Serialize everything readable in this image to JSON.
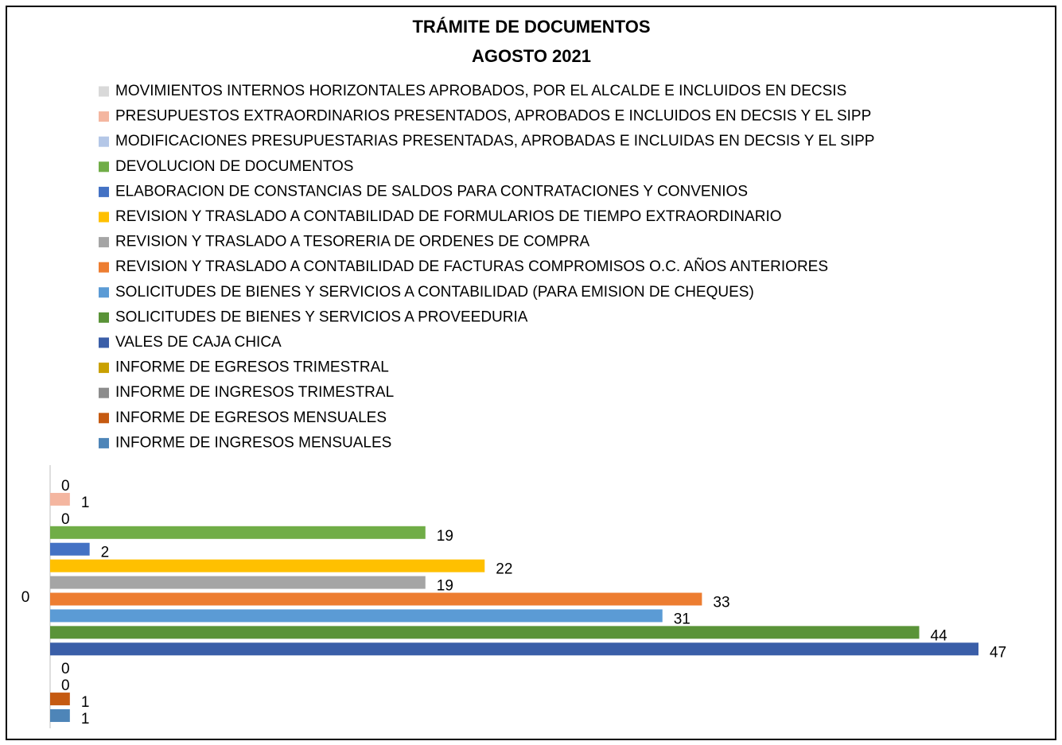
{
  "chart_data": {
    "type": "barh",
    "title": "TRÁMITE DE DOCUMENTOS",
    "subtitle": "AGOSTO 2021",
    "categories": [
      "0"
    ],
    "xlim": [
      0,
      50
    ],
    "series": [
      {
        "name": "MOVIMIENTOS INTERNOS HORIZONTALES APROBADOS,  POR EL ALCALDE E INCLUIDOS EN DECSIS",
        "color": "#d9d9d9",
        "values": [
          0
        ]
      },
      {
        "name": "PRESUPUESTOS EXTRAORDINARIOS PRESENTADOS, APROBADOS E INCLUIDOS EN DECSIS Y EL SIPP",
        "color": "#f4b6a0",
        "values": [
          1
        ]
      },
      {
        "name": "MODIFICACIONES PRESUPUESTARIAS PRESENTADAS, APROBADAS E INCLUIDAS EN DECSIS Y EL SIPP",
        "color": "#b4c7e7",
        "values": [
          0
        ]
      },
      {
        "name": "DEVOLUCION DE DOCUMENTOS",
        "color": "#70ad47",
        "values": [
          19
        ]
      },
      {
        "name": "ELABORACION DE CONSTANCIAS DE SALDOS PARA CONTRATACIONES Y CONVENIOS",
        "color": "#4472c4",
        "values": [
          2
        ]
      },
      {
        "name": "REVISION Y TRASLADO A CONTABILIDAD DE FORMULARIOS DE TIEMPO EXTRAORDINARIO",
        "color": "#ffc000",
        "values": [
          22
        ]
      },
      {
        "name": "REVISION Y TRASLADO A TESORERIA DE ORDENES DE COMPRA",
        "color": "#a5a5a5",
        "values": [
          19
        ]
      },
      {
        "name": "REVISION Y TRASLADO A CONTABILIDAD DE FACTURAS COMPROMISOS O.C. AÑOS ANTERIORES",
        "color": "#ed7d31",
        "values": [
          33
        ]
      },
      {
        "name": "SOLICITUDES DE BIENES Y SERVICIOS A CONTABILIDAD (PARA EMISION DE CHEQUES)",
        "color": "#5b9bd5",
        "values": [
          31
        ]
      },
      {
        "name": "SOLICITUDES DE BIENES Y SERVICIOS A PROVEEDURIA",
        "color": "#5a9338",
        "values": [
          44
        ]
      },
      {
        "name": "VALES DE CAJA CHICA",
        "color": "#3a5ea8",
        "values": [
          47
        ]
      },
      {
        "name": "INFORME DE EGRESOS TRIMESTRAL",
        "color": "#c9a000",
        "values": [
          0
        ]
      },
      {
        "name": "INFORME DE INGRESOS TRIMESTRAL",
        "color": "#8c8c8c",
        "values": [
          0
        ]
      },
      {
        "name": "INFORME DE EGRESOS MENSUALES",
        "color": "#c55a11",
        "values": [
          1
        ]
      },
      {
        "name": "INFORME DE INGRESOS MENSUALES",
        "color": "#4e85b8",
        "values": [
          1
        ]
      }
    ]
  }
}
